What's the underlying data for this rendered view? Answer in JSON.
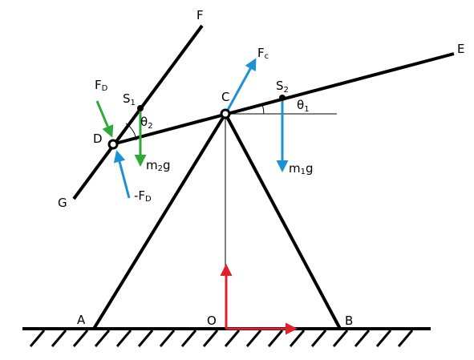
{
  "colors": {
    "structure": "#000000",
    "gravity": "#1E90D6",
    "contact_force": "#1E90D6",
    "applied_force": "#2EAA3A",
    "axes": "#E0202A"
  },
  "labels": {
    "A": "A",
    "B": "B",
    "O": "O",
    "C": "C",
    "D": "D",
    "E": "E",
    "F": "F",
    "G": "G",
    "S1": "S",
    "S1_sub": "1",
    "S2": "S",
    "S2_sub": "2",
    "theta1": "θ",
    "theta1_sub": "1",
    "theta2": "θ",
    "theta2_sub": "2",
    "Fc": "F",
    "Fc_sub": "c",
    "FD": "F",
    "FD_sub": "D",
    "negFD": "-F",
    "negFD_sub": "D",
    "m1g_pre": "m",
    "m1g_sub": "1",
    "m1g_post": "g",
    "m2g_pre": "m",
    "m2g_sub": "2",
    "m2g_post": "g"
  }
}
